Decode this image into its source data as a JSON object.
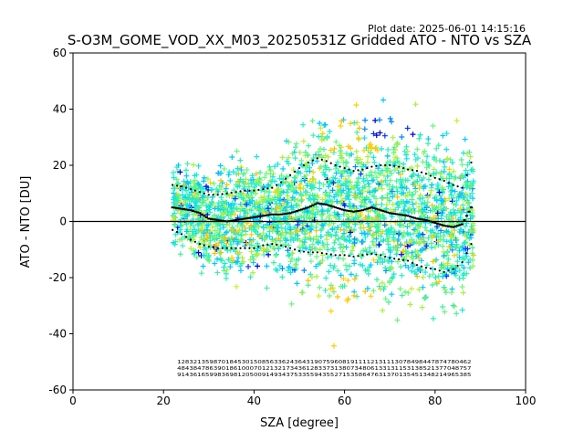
{
  "chart_data": {
    "type": "scatter",
    "plot_date": "Plot date: 2025-06-01 14:15:16",
    "title": "S-O3M_GOME_VOD_XX_M03_20250531Z Gridded ATO - NTO vs SZA",
    "xlabel": "SZA [degree]",
    "ylabel": "ATO - NTO [DU]",
    "xlim": [
      0,
      100
    ],
    "ylim": [
      -60,
      60
    ],
    "xticks": [
      0,
      20,
      40,
      60,
      80,
      100
    ],
    "yticks": [
      -60,
      -40,
      -20,
      0,
      20,
      40,
      60
    ],
    "reference_line_y": 0,
    "grid": false,
    "legend": "none",
    "colors": {
      "point_palette": [
        "#0000d8",
        "#0033ff",
        "#0088ff",
        "#00c8ff",
        "#10e8e0",
        "#26f0c0",
        "#40f0a0",
        "#6cf57a",
        "#a8f040",
        "#c8f028",
        "#ffc000",
        "#ffd000"
      ],
      "reference_line": "#000000",
      "stats_markers": "#000000"
    },
    "mean_bin_width": 0.5,
    "mean_curve": {
      "x": [
        22,
        24,
        26,
        28,
        30,
        32,
        34,
        36,
        38,
        40,
        42,
        44,
        46,
        48,
        50,
        52,
        54,
        56,
        58,
        60,
        62,
        64,
        66,
        68,
        70,
        72,
        74,
        76,
        78,
        80,
        82,
        84,
        86,
        88
      ],
      "y": [
        5,
        4.5,
        4,
        3,
        1,
        0.5,
        0,
        0.5,
        1,
        1.5,
        2,
        2.5,
        2.5,
        3,
        4,
        5,
        6.5,
        6,
        5,
        4,
        3.5,
        4,
        5,
        4,
        3,
        2.5,
        2,
        1,
        0.5,
        -0.5,
        -1.5,
        -2,
        -1,
        5
      ]
    },
    "upper_curve": {
      "x": [
        22,
        24,
        26,
        28,
        30,
        32,
        34,
        36,
        38,
        40,
        42,
        44,
        46,
        48,
        50,
        52,
        54,
        56,
        58,
        60,
        62,
        64,
        66,
        68,
        70,
        72,
        74,
        76,
        78,
        80,
        82,
        84,
        86,
        88
      ],
      "y": [
        13,
        12.5,
        11.5,
        10.5,
        9.5,
        9.5,
        10,
        10.5,
        11,
        11,
        11.5,
        12,
        14,
        16.5,
        19,
        21,
        22.5,
        21.5,
        20,
        19,
        18,
        18.5,
        19.5,
        20,
        20,
        19.5,
        18.5,
        18,
        17,
        15.5,
        14.5,
        13,
        12,
        21
      ]
    },
    "lower_curve": {
      "x": [
        22,
        24,
        26,
        28,
        30,
        32,
        34,
        36,
        38,
        40,
        42,
        44,
        46,
        48,
        50,
        52,
        54,
        56,
        58,
        60,
        62,
        64,
        66,
        68,
        70,
        72,
        74,
        76,
        78,
        80,
        82,
        84,
        86,
        88
      ],
      "y": [
        -3,
        -4.5,
        -6.5,
        -8,
        -9,
        -9.5,
        -9.5,
        -9.5,
        -9.5,
        -9.5,
        -8.5,
        -8,
        -8.5,
        -9.5,
        -10.5,
        -11,
        -11,
        -11.5,
        -12,
        -12,
        -12.5,
        -12,
        -11.5,
        -12,
        -13,
        -13.5,
        -14,
        -15.5,
        -16.5,
        -17,
        -18,
        -17,
        -14.5,
        -8
      ]
    },
    "count_rows": [
      "1283213598701845301508563362436431907596081911112131113078498447874780462",
      "4843847863901861000701213217343612833731380734806133131153138521377048757",
      "9143616599836981205009149343753355943552715358647631370135451348214965385"
    ],
    "count_x_range": [
      23,
      88
    ]
  }
}
